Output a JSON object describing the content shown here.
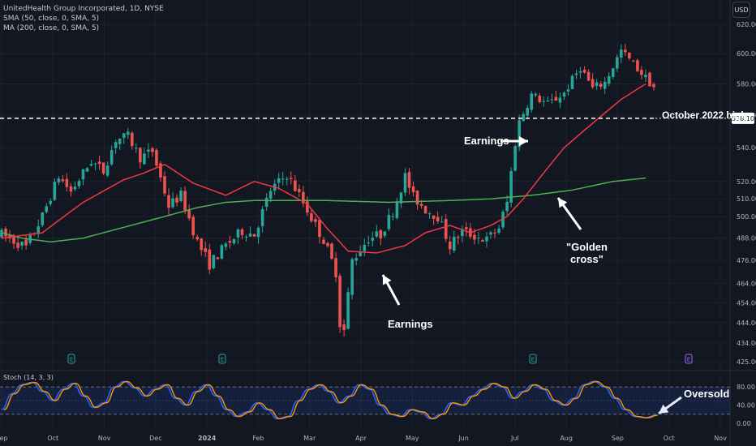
{
  "header": {
    "symbol_line": "UnitedHealth Group Incorporated, 1D, NYSE",
    "sma_line": "SMA (50, close, 0, SMA, 5)",
    "ma_line": "MA (200, close, 0, SMA, 5)",
    "currency_button": "USD"
  },
  "annotations": {
    "oct_high_label": "October 2022 high",
    "oct_high_price_tag": "558.10",
    "earnings_july": "Earnings",
    "earnings_april": "Earnings",
    "golden_cross": "\"Golden\ncross\"",
    "oversold": "Oversold"
  },
  "oscillator": {
    "label": "Stoch (14, 3, 3)",
    "ticks": [
      "80.00",
      "40.00",
      "0.00"
    ]
  },
  "colors": {
    "background": "#131722",
    "up_candle": "#26a69a",
    "down_candle": "#ef5350",
    "sma50": "#f23645",
    "ma200": "#4caf50",
    "stoch_k": "#2962ff",
    "stoch_d": "#ff9800",
    "annotation": "#ffffff"
  },
  "chart_data": {
    "type": "candlestick",
    "title": "UnitedHealth Group Incorporated, 1D, NYSE",
    "price_axis": {
      "ticks": [
        "620.00",
        "600.00",
        "580.00",
        "560.00",
        "540.00",
        "520.00",
        "510.00",
        "500.00",
        "488.00",
        "476.00",
        "464.00",
        "454.00",
        "444.00",
        "434.00",
        "425.00"
      ],
      "range": [
        425,
        620
      ],
      "scale": "log"
    },
    "time_axis": {
      "ticks": [
        "Sep",
        "Oct",
        "Nov",
        "Dec",
        "2024",
        "Feb",
        "Mar",
        "Apr",
        "May",
        "Jun",
        "Jul",
        "Aug",
        "Sep",
        "Oct",
        "Nov"
      ]
    },
    "reference_line": {
      "name": "October 2022 high",
      "value": 558.1
    },
    "earnings_markers": [
      "E",
      "E",
      "E",
      "E"
    ],
    "price_path": [
      [
        0,
        490
      ],
      [
        6,
        483
      ],
      [
        10,
        500
      ],
      [
        14,
        523
      ],
      [
        17,
        514
      ],
      [
        22,
        532
      ],
      [
        25,
        526
      ],
      [
        28,
        545
      ],
      [
        31,
        547
      ],
      [
        34,
        534
      ],
      [
        37,
        538
      ],
      [
        41,
        506
      ],
      [
        44,
        512
      ],
      [
        48,
        486
      ],
      [
        51,
        474
      ],
      [
        55,
        484
      ],
      [
        59,
        492
      ],
      [
        62,
        490
      ],
      [
        66,
        515
      ],
      [
        70,
        524
      ],
      [
        73,
        512
      ],
      [
        77,
        495
      ],
      [
        79,
        487
      ],
      [
        82,
        470
      ],
      [
        83,
        444
      ],
      [
        84,
        440
      ],
      [
        86,
        476
      ],
      [
        90,
        488
      ],
      [
        93,
        490
      ],
      [
        96,
        503
      ],
      [
        99,
        523
      ],
      [
        101,
        511
      ],
      [
        104,
        504
      ],
      [
        107,
        500
      ],
      [
        110,
        484
      ],
      [
        113,
        492
      ],
      [
        115,
        490
      ],
      [
        119,
        487
      ],
      [
        122,
        494
      ],
      [
        124,
        508
      ],
      [
        126,
        543
      ],
      [
        127,
        556
      ],
      [
        130,
        573
      ],
      [
        134,
        567
      ],
      [
        138,
        574
      ],
      [
        142,
        591
      ],
      [
        145,
        577
      ],
      [
        148,
        581
      ],
      [
        152,
        602
      ],
      [
        156,
        590
      ],
      [
        160,
        578
      ]
    ],
    "sma50_path": [
      [
        0,
        488
      ],
      [
        10,
        491
      ],
      [
        20,
        508
      ],
      [
        30,
        521
      ],
      [
        35,
        525
      ],
      [
        40,
        530
      ],
      [
        47,
        519
      ],
      [
        55,
        512
      ],
      [
        62,
        520
      ],
      [
        68,
        516
      ],
      [
        75,
        507
      ],
      [
        80,
        493
      ],
      [
        85,
        481
      ],
      [
        92,
        480
      ],
      [
        99,
        484
      ],
      [
        104,
        491
      ],
      [
        110,
        495
      ],
      [
        115,
        491
      ],
      [
        120,
        495
      ],
      [
        124,
        500
      ],
      [
        128,
        510
      ],
      [
        133,
        525
      ],
      [
        138,
        540
      ],
      [
        145,
        555
      ],
      [
        152,
        570
      ],
      [
        158,
        580
      ]
    ],
    "ma200_path": [
      [
        0,
        491
      ],
      [
        5,
        488
      ],
      [
        12,
        486
      ],
      [
        20,
        488
      ],
      [
        30,
        494
      ],
      [
        40,
        500
      ],
      [
        48,
        505
      ],
      [
        55,
        508
      ],
      [
        62,
        509
      ],
      [
        70,
        509
      ],
      [
        80,
        509
      ],
      [
        95,
        508
      ],
      [
        110,
        509
      ],
      [
        120,
        510
      ],
      [
        130,
        512
      ],
      [
        140,
        515
      ],
      [
        150,
        520
      ],
      [
        158,
        522
      ]
    ],
    "stochastic": {
      "levels": [
        80,
        20
      ],
      "k": [
        30,
        65,
        85,
        90,
        70,
        50,
        75,
        88,
        60,
        35,
        45,
        80,
        92,
        78,
        60,
        75,
        85,
        55,
        40,
        70,
        85,
        60,
        30,
        15,
        25,
        45,
        30,
        10,
        15,
        50,
        75,
        85,
        70,
        45,
        60,
        85,
        75,
        40,
        20,
        15,
        30,
        25,
        10,
        20,
        45,
        40,
        60,
        75,
        88,
        80,
        55,
        70,
        85,
        75,
        50,
        40,
        55,
        85,
        92,
        80,
        55,
        30,
        15,
        12,
        18
      ]
    }
  }
}
